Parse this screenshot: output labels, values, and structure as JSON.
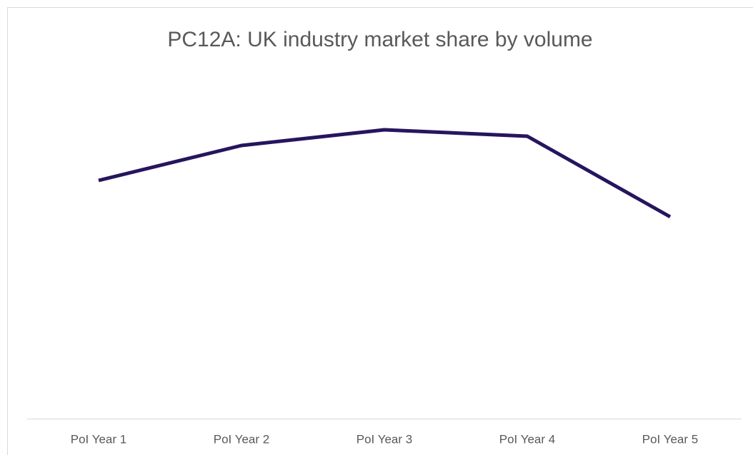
{
  "chart_data": {
    "type": "line",
    "title": "PC12A: UK industry market share by volume",
    "categories": [
      "PoI Year 1",
      "PoI Year 2",
      "PoI Year 3",
      "PoI Year 4",
      "PoI Year 5"
    ],
    "values": [
      66.8,
      76.6,
      81,
      79.2,
      56.6
    ],
    "color": "#26155e",
    "ylim": [
      0,
      100
    ]
  }
}
